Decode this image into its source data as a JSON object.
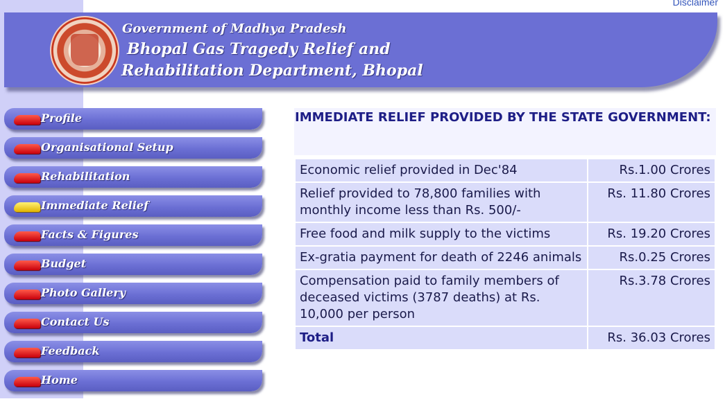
{
  "header": {
    "disclaimer": "Disclaimer",
    "line1": "Government of Madhya Pradesh",
    "line2": "Bhopal Gas Tragedy Relief and",
    "line3": "Rehabilitation Department, Bhopal"
  },
  "nav": {
    "items": [
      {
        "label": "Profile"
      },
      {
        "label": "Organisational Setup"
      },
      {
        "label": "Rehabilitation"
      },
      {
        "label": "Immediate Relief"
      },
      {
        "label": "Facts & Figures"
      },
      {
        "label": "Budget"
      },
      {
        "label": "Photo Gallery"
      },
      {
        "label": "Contact Us"
      },
      {
        "label": "Feedback"
      },
      {
        "label": "Home"
      }
    ],
    "active_index": 3
  },
  "content": {
    "title": "IMMEDIATE RELIEF PROVIDED BY THE STATE GOVERNMENT:",
    "rows": [
      {
        "desc": "Economic relief provided in Dec'84",
        "amount": "Rs.1.00 Crores"
      },
      {
        "desc": "Relief provided to 78,800 families with monthly income less than Rs. 500/-",
        "amount": "Rs. 11.80 Crores"
      },
      {
        "desc": "Free food and milk supply to the victims",
        "amount": "Rs. 19.20 Crores"
      },
      {
        "desc": "Ex-gratia payment for death of 2246 animals",
        "amount": "Rs.0.25 Crores"
      },
      {
        "desc": "Compensation paid to family members of deceased victims (3787 deaths) at Rs. 10,000 per person",
        "amount": "Rs.3.78 Crores"
      }
    ],
    "total": {
      "label": "Total",
      "amount": "Rs. 36.03 Crores"
    }
  },
  "colors": {
    "banner": "#6b6fd4",
    "left_strip": "#d0d0f8",
    "cell": "#dadcfa",
    "title_text": "#1e1e86",
    "bullet_active": "#ffd400",
    "bullet": "#d0000c"
  }
}
